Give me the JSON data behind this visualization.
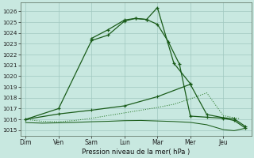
{
  "background_color": "#c8e8e0",
  "grid_color": "#a0c8c0",
  "line_color_dark": "#1a5c1a",
  "line_color_mid": "#2a7a2a",
  "xlabel": "Pression niveau de la mer( hPa )",
  "x_labels": [
    "Dim",
    "Ven",
    "Sam",
    "Lun",
    "Mar",
    "Mer",
    "Jeu"
  ],
  "yticks": [
    1015,
    1016,
    1017,
    1018,
    1019,
    1020,
    1021,
    1022,
    1023,
    1024,
    1025,
    1026
  ],
  "ylim": [
    1014.5,
    1026.8
  ],
  "xlim": [
    -0.15,
    6.85
  ],
  "line1_x": [
    0,
    1,
    2,
    2.5,
    3,
    3.33,
    3.67,
    4,
    4.5,
    5
  ],
  "line1_y": [
    1016.0,
    1017.0,
    1023.3,
    1023.8,
    1025.1,
    1025.35,
    1025.25,
    1026.35,
    1021.2,
    1019.3
  ],
  "line2_x": [
    2,
    2.5,
    3,
    3.33,
    3.67,
    4,
    4.33,
    4.67,
    5,
    5.5,
    6,
    6.33,
    6.67
  ],
  "line2_y": [
    1023.5,
    1024.3,
    1025.2,
    1025.35,
    1025.25,
    1024.8,
    1023.2,
    1021.1,
    1016.3,
    1016.2,
    1016.1,
    1015.9,
    1015.2
  ],
  "line3_x": [
    0,
    0.5,
    1,
    1.5,
    2,
    2.5,
    3,
    3.5,
    4,
    4.5,
    5,
    5.5,
    6,
    6.5
  ],
  "line3_y": [
    1016.0,
    1015.82,
    1015.78,
    1015.9,
    1016.1,
    1016.35,
    1016.6,
    1016.85,
    1017.1,
    1017.4,
    1017.9,
    1018.45,
    1016.35,
    1016.05
  ],
  "line4_x": [
    0,
    0.5,
    1,
    1.5,
    2,
    2.5,
    3,
    3.5,
    4,
    4.5,
    5,
    5.5,
    6,
    6.33,
    6.67
  ],
  "line4_y": [
    1015.7,
    1015.65,
    1015.68,
    1015.72,
    1015.78,
    1015.82,
    1015.88,
    1015.9,
    1015.85,
    1015.8,
    1015.72,
    1015.5,
    1015.05,
    1014.95,
    1015.18
  ],
  "line5_x": [
    0,
    1,
    2,
    3,
    4,
    5,
    5.5,
    6,
    6.33,
    6.67
  ],
  "line5_y": [
    1016.0,
    1016.5,
    1016.85,
    1017.25,
    1018.1,
    1019.25,
    1016.45,
    1016.15,
    1016.05,
    1015.35
  ]
}
